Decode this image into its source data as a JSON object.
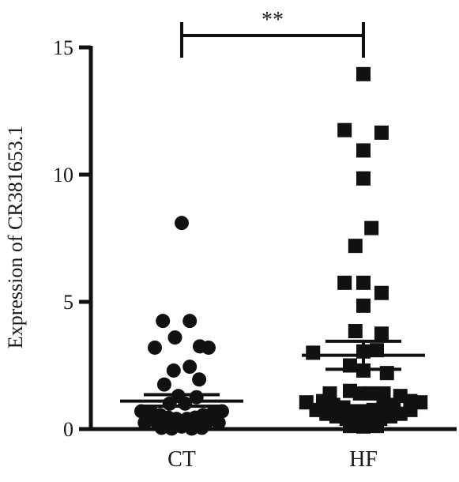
{
  "chart_data": {
    "type": "scatter",
    "ylabel": "Expression of CR381653.1",
    "xlabel": "",
    "ylim": [
      0,
      15
    ],
    "yticks": [
      0,
      5,
      10,
      15
    ],
    "grid": false,
    "categories": [
      "CT",
      "HF"
    ],
    "significance": {
      "label": "**",
      "between": [
        "CT",
        "HF"
      ],
      "y": 15.5
    },
    "series": [
      {
        "category": "CT",
        "marker": "circle",
        "mean": 1.1,
        "sem_low": 0.9,
        "sem_high": 1.35,
        "points": [
          [
            0.0,
            8.1
          ],
          [
            -0.28,
            4.25
          ],
          [
            0.12,
            4.25
          ],
          [
            -0.1,
            3.6
          ],
          [
            -0.4,
            3.2
          ],
          [
            0.27,
            3.25
          ],
          [
            0.4,
            3.2
          ],
          [
            -0.12,
            2.3
          ],
          [
            0.12,
            2.45
          ],
          [
            0.26,
            1.95
          ],
          [
            -0.26,
            1.75
          ],
          [
            -0.05,
            1.3
          ],
          [
            0.22,
            1.25
          ],
          [
            -0.18,
            1.0
          ],
          [
            0.05,
            1.0
          ],
          [
            -0.6,
            0.7
          ],
          [
            -0.45,
            0.65
          ],
          [
            -0.32,
            0.55
          ],
          [
            -0.2,
            0.45
          ],
          [
            -0.08,
            0.4
          ],
          [
            0.08,
            0.4
          ],
          [
            0.2,
            0.45
          ],
          [
            0.32,
            0.55
          ],
          [
            0.45,
            0.6
          ],
          [
            0.6,
            0.7
          ],
          [
            -0.5,
            0.45
          ],
          [
            -0.38,
            0.3
          ],
          [
            -0.25,
            0.2
          ],
          [
            -0.12,
            0.12
          ],
          [
            0.0,
            0.1
          ],
          [
            0.12,
            0.12
          ],
          [
            0.25,
            0.2
          ],
          [
            0.38,
            0.3
          ],
          [
            0.5,
            0.45
          ],
          [
            -0.3,
            0.05
          ],
          [
            -0.15,
            0.02
          ],
          [
            0.15,
            0.02
          ],
          [
            0.3,
            0.05
          ],
          [
            -0.55,
            0.25
          ],
          [
            0.55,
            0.25
          ]
        ]
      },
      {
        "category": "HF",
        "marker": "square",
        "mean": 2.9,
        "sem_low": 2.35,
        "sem_high": 3.45,
        "points": [
          [
            0.0,
            13.95
          ],
          [
            -0.28,
            11.75
          ],
          [
            0.27,
            11.65
          ],
          [
            0.0,
            10.95
          ],
          [
            0.0,
            9.85
          ],
          [
            0.12,
            7.9
          ],
          [
            -0.12,
            7.2
          ],
          [
            -0.28,
            5.75
          ],
          [
            0.0,
            5.75
          ],
          [
            0.27,
            5.35
          ],
          [
            0.0,
            4.85
          ],
          [
            -0.12,
            3.85
          ],
          [
            0.27,
            3.75
          ],
          [
            -0.75,
            3.0
          ],
          [
            0.0,
            3.05
          ],
          [
            0.2,
            3.1
          ],
          [
            -0.2,
            2.5
          ],
          [
            0.0,
            2.3
          ],
          [
            0.35,
            2.2
          ],
          [
            -0.5,
            1.4
          ],
          [
            -0.2,
            1.5
          ],
          [
            -0.05,
            1.4
          ],
          [
            0.1,
            1.4
          ],
          [
            0.3,
            1.4
          ],
          [
            0.55,
            1.3
          ],
          [
            -0.6,
            1.1
          ],
          [
            -0.85,
            1.05
          ],
          [
            0.7,
            1.1
          ],
          [
            0.85,
            1.05
          ],
          [
            -0.45,
            0.95
          ],
          [
            -0.3,
            0.85
          ],
          [
            -0.15,
            0.7
          ],
          [
            0.0,
            0.7
          ],
          [
            0.15,
            0.75
          ],
          [
            0.3,
            0.85
          ],
          [
            0.45,
            0.95
          ],
          [
            -0.7,
            0.75
          ],
          [
            -0.55,
            0.6
          ],
          [
            -0.4,
            0.5
          ],
          [
            -0.25,
            0.4
          ],
          [
            -0.1,
            0.3
          ],
          [
            0.1,
            0.3
          ],
          [
            0.25,
            0.4
          ],
          [
            0.4,
            0.5
          ],
          [
            0.55,
            0.6
          ],
          [
            0.7,
            0.75
          ],
          [
            -0.2,
            0.12
          ],
          [
            0.0,
            0.1
          ],
          [
            0.2,
            0.12
          ]
        ]
      }
    ]
  }
}
